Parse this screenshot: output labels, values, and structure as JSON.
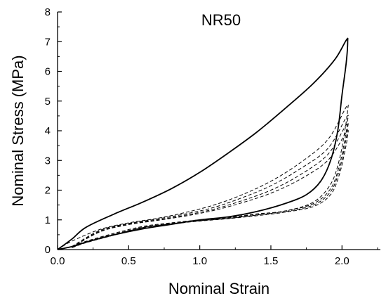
{
  "chart_data": {
    "type": "line",
    "title": "NR50",
    "xlabel": "Nominal Strain",
    "ylabel": "Nominal Stress (MPa)",
    "xlim": [
      0,
      2.27
    ],
    "ylim": [
      0,
      8
    ],
    "grid": false,
    "legend": "none",
    "x_ticks": [
      "0.0",
      "0.5",
      "1.0",
      "1.5",
      "2.0"
    ],
    "y_ticks": [
      "0",
      "1",
      "2",
      "3",
      "4",
      "5",
      "6",
      "7",
      "8"
    ],
    "colors": {
      "line": "#000000",
      "axis": "#000000"
    },
    "series": [
      {
        "style": "solid",
        "points": [
          [
            0.0,
            0.0
          ],
          [
            0.1,
            0.35
          ],
          [
            0.2,
            0.75
          ],
          [
            0.4,
            1.2
          ],
          [
            0.6,
            1.6
          ],
          [
            0.8,
            2.05
          ],
          [
            1.0,
            2.6
          ],
          [
            1.2,
            3.25
          ],
          [
            1.4,
            3.95
          ],
          [
            1.6,
            4.75
          ],
          [
            1.8,
            5.6
          ],
          [
            1.95,
            6.4
          ],
          [
            2.03,
            7.05
          ],
          [
            2.04,
            7.0
          ],
          [
            2.03,
            6.3
          ],
          [
            2.0,
            5.2
          ],
          [
            1.97,
            4.0
          ],
          [
            1.92,
            3.0
          ],
          [
            1.85,
            2.3
          ],
          [
            1.75,
            1.85
          ],
          [
            1.6,
            1.55
          ],
          [
            1.4,
            1.28
          ],
          [
            1.2,
            1.1
          ],
          [
            1.0,
            1.0
          ],
          [
            0.8,
            0.85
          ],
          [
            0.6,
            0.7
          ],
          [
            0.4,
            0.5
          ],
          [
            0.2,
            0.25
          ],
          [
            0.1,
            0.1
          ],
          [
            0.0,
            0.0
          ]
        ]
      },
      {
        "style": "dashed",
        "points": [
          [
            0.0,
            0.0
          ],
          [
            0.1,
            0.28
          ],
          [
            0.3,
            0.68
          ],
          [
            0.5,
            0.9
          ],
          [
            0.7,
            1.05
          ],
          [
            0.9,
            1.25
          ],
          [
            1.1,
            1.5
          ],
          [
            1.3,
            1.85
          ],
          [
            1.5,
            2.3
          ],
          [
            1.7,
            2.9
          ],
          [
            1.9,
            3.7
          ],
          [
            2.03,
            4.8
          ],
          [
            2.04,
            4.7
          ],
          [
            2.02,
            4.0
          ],
          [
            1.98,
            3.0
          ],
          [
            1.92,
            2.2
          ],
          [
            1.8,
            1.6
          ],
          [
            1.6,
            1.3
          ],
          [
            1.4,
            1.2
          ],
          [
            1.2,
            1.08
          ],
          [
            1.0,
            1.0
          ],
          [
            0.8,
            0.9
          ],
          [
            0.6,
            0.78
          ],
          [
            0.4,
            0.55
          ],
          [
            0.2,
            0.28
          ],
          [
            0.1,
            0.1
          ]
        ]
      },
      {
        "style": "dashed",
        "points": [
          [
            0.1,
            0.1
          ],
          [
            0.3,
            0.65
          ],
          [
            0.5,
            0.88
          ],
          [
            0.7,
            1.03
          ],
          [
            0.9,
            1.2
          ],
          [
            1.1,
            1.42
          ],
          [
            1.3,
            1.75
          ],
          [
            1.5,
            2.15
          ],
          [
            1.7,
            2.7
          ],
          [
            1.9,
            3.4
          ],
          [
            2.03,
            4.45
          ],
          [
            2.04,
            4.35
          ],
          [
            2.02,
            3.7
          ],
          [
            1.98,
            2.8
          ],
          [
            1.92,
            2.05
          ],
          [
            1.8,
            1.55
          ],
          [
            1.6,
            1.3
          ],
          [
            1.4,
            1.18
          ],
          [
            1.2,
            1.06
          ],
          [
            1.0,
            0.98
          ],
          [
            0.8,
            0.88
          ],
          [
            0.6,
            0.75
          ],
          [
            0.4,
            0.52
          ],
          [
            0.2,
            0.26
          ],
          [
            0.1,
            0.08
          ]
        ]
      },
      {
        "style": "dashed",
        "points": [
          [
            0.1,
            0.08
          ],
          [
            0.3,
            0.62
          ],
          [
            0.5,
            0.86
          ],
          [
            0.7,
            1.0
          ],
          [
            0.9,
            1.16
          ],
          [
            1.1,
            1.36
          ],
          [
            1.3,
            1.65
          ],
          [
            1.5,
            2.0
          ],
          [
            1.7,
            2.5
          ],
          [
            1.9,
            3.2
          ],
          [
            2.03,
            4.2
          ],
          [
            2.04,
            4.1
          ],
          [
            2.02,
            3.5
          ],
          [
            1.98,
            2.65
          ],
          [
            1.92,
            1.95
          ],
          [
            1.8,
            1.5
          ],
          [
            1.6,
            1.28
          ],
          [
            1.4,
            1.16
          ],
          [
            1.2,
            1.05
          ],
          [
            1.0,
            0.97
          ],
          [
            0.8,
            0.87
          ],
          [
            0.6,
            0.74
          ],
          [
            0.4,
            0.5
          ],
          [
            0.2,
            0.24
          ],
          [
            0.1,
            0.07
          ]
        ]
      },
      {
        "style": "dashed",
        "points": [
          [
            0.1,
            0.07
          ],
          [
            0.3,
            0.6
          ],
          [
            0.5,
            0.84
          ],
          [
            0.7,
            0.98
          ],
          [
            0.9,
            1.13
          ],
          [
            1.1,
            1.32
          ],
          [
            1.3,
            1.58
          ],
          [
            1.5,
            1.9
          ],
          [
            1.7,
            2.35
          ],
          [
            1.9,
            3.0
          ],
          [
            2.03,
            3.95
          ],
          [
            2.04,
            3.85
          ],
          [
            2.02,
            3.3
          ],
          [
            1.98,
            2.5
          ],
          [
            1.92,
            1.85
          ],
          [
            1.8,
            1.45
          ],
          [
            1.6,
            1.26
          ],
          [
            1.4,
            1.14
          ],
          [
            1.2,
            1.04
          ],
          [
            1.0,
            0.96
          ],
          [
            0.8,
            0.86
          ],
          [
            0.6,
            0.73
          ],
          [
            0.4,
            0.49
          ],
          [
            0.2,
            0.23
          ],
          [
            0.1,
            0.06
          ]
        ]
      }
    ]
  }
}
